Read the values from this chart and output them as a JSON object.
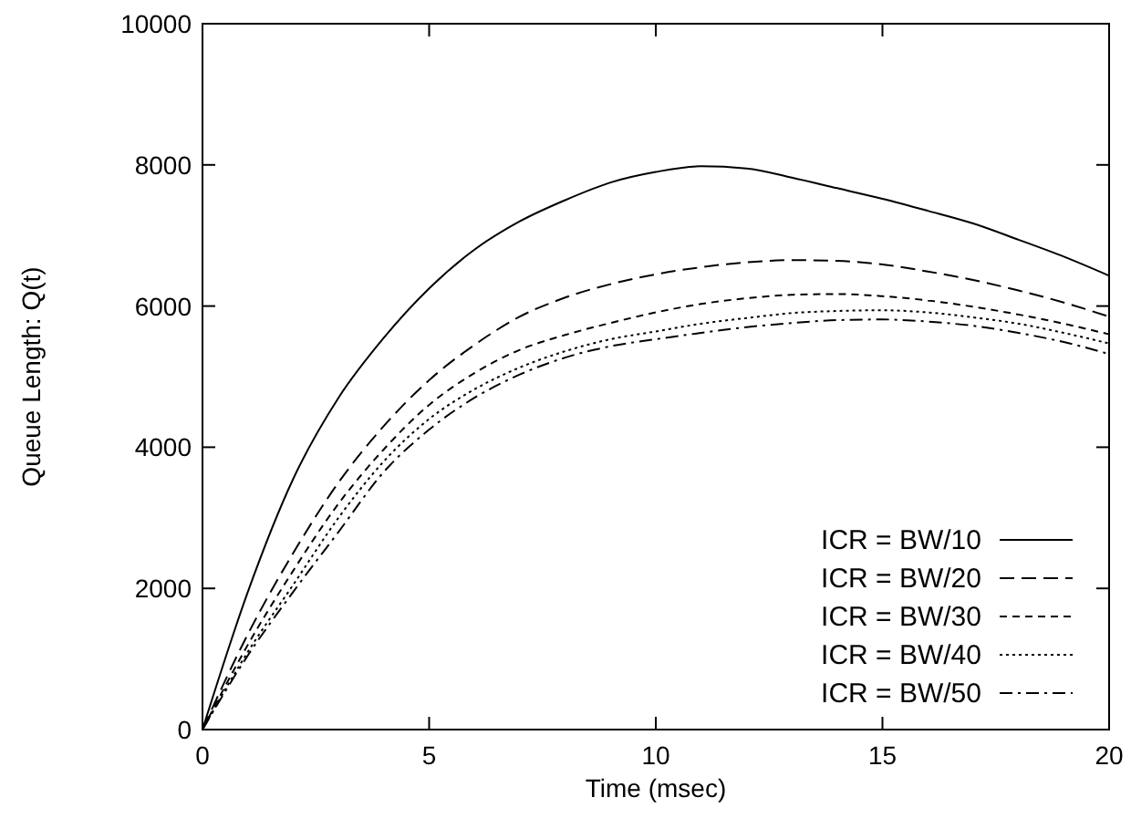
{
  "chart_data": {
    "type": "line",
    "xlabel": "Time (msec)",
    "ylabel": "Queue Length: Q(t)",
    "x": [
      0,
      1,
      2,
      3,
      4,
      5,
      6,
      7,
      8,
      9,
      10,
      11,
      12,
      13,
      14,
      15,
      16,
      17,
      18,
      19,
      20
    ],
    "xlim": [
      0,
      20
    ],
    "xticks": [
      0,
      5,
      10,
      15,
      20
    ],
    "ylim": [
      0,
      10000
    ],
    "yticks": [
      0,
      2000,
      4000,
      6000,
      8000,
      10000
    ],
    "grid": false,
    "legend": "bottom right",
    "marker": "none",
    "series": [
      {
        "name": "ICR = BW/10",
        "color": "#000000",
        "line_style": "solid",
        "values": [
          0,
          1950,
          3550,
          4700,
          5550,
          6250,
          6800,
          7200,
          7500,
          7750,
          7900,
          7980,
          7950,
          7820,
          7670,
          7520,
          7350,
          7170,
          6940,
          6700,
          6430
        ]
      },
      {
        "name": "ICR = BW/20",
        "color": "#000000",
        "line_style": "dashed",
        "values": [
          0,
          1350,
          2500,
          3500,
          4300,
          4950,
          5450,
          5850,
          6120,
          6310,
          6450,
          6550,
          6620,
          6650,
          6640,
          6590,
          6490,
          6370,
          6220,
          6050,
          5850
        ]
      },
      {
        "name": "ICR = BW/30",
        "color": "#000000",
        "line_style": "dashed",
        "values": [
          0,
          1200,
          2250,
          3200,
          3970,
          4600,
          5050,
          5380,
          5590,
          5760,
          5910,
          6030,
          6110,
          6160,
          6170,
          6140,
          6080,
          5990,
          5880,
          5750,
          5600
        ]
      },
      {
        "name": "ICR = BW/40",
        "color": "#000000",
        "line_style": "dotted",
        "values": [
          0,
          1100,
          2050,
          3000,
          3800,
          4400,
          4820,
          5130,
          5360,
          5530,
          5640,
          5750,
          5830,
          5900,
          5930,
          5940,
          5910,
          5840,
          5750,
          5620,
          5470
        ]
      },
      {
        "name": "ICR = BW/50",
        "color": "#000000",
        "line_style": "dashdot",
        "values": [
          0,
          1050,
          1950,
          2800,
          3650,
          4250,
          4700,
          5030,
          5270,
          5430,
          5530,
          5620,
          5700,
          5760,
          5800,
          5810,
          5780,
          5720,
          5620,
          5490,
          5320
        ]
      }
    ]
  }
}
